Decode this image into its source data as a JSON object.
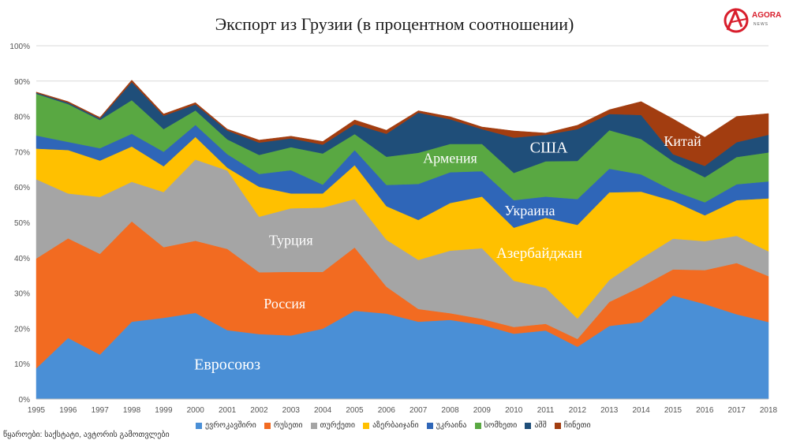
{
  "title": "Экспорт из Грузии (в процентном соотношении)",
  "logo": {
    "text": "AGORA",
    "sub": "NEWS"
  },
  "source": "წყაროები: საქსტატი, ავტორის გამოთვლები",
  "chart_data": {
    "type": "area",
    "stacked": true,
    "x": [
      "1995",
      "1996",
      "1997",
      "1998",
      "1999",
      "2000",
      "2001",
      "2002",
      "2003",
      "2004",
      "2005",
      "2006",
      "2007",
      "2008",
      "2009",
      "2010",
      "2011",
      "2012",
      "2013",
      "2014",
      "2015",
      "2016",
      "2017",
      "2018"
    ],
    "ylim": [
      0,
      100
    ],
    "yticks": [
      "0%",
      "10%",
      "20%",
      "30%",
      "40%",
      "50%",
      "60%",
      "70%",
      "80%",
      "90%",
      "100%"
    ],
    "grid": true,
    "legend_position": "bottom",
    "series": [
      {
        "name": "ევროკავშირი",
        "color": "#4a8fd6",
        "label": "Евросоюз",
        "values": [
          8.7,
          17.3,
          12.6,
          21.9,
          23.0,
          24.4,
          19.5,
          18.4,
          18.0,
          19.9,
          25.0,
          24.2,
          21.9,
          22.4,
          21.0,
          18.5,
          19.4,
          14.8,
          20.7,
          21.8,
          29.3,
          26.9,
          24.0,
          21.8
        ]
      },
      {
        "name": "რუსეთი",
        "color": "#f26b21",
        "label": "Россия",
        "values": [
          31.1,
          28.2,
          28.5,
          28.4,
          20.0,
          20.4,
          23.0,
          17.5,
          18.0,
          16.1,
          17.9,
          7.6,
          3.6,
          1.9,
          1.7,
          1.9,
          1.9,
          2.2,
          6.8,
          10.0,
          7.4,
          9.6,
          14.5,
          13.0
        ]
      },
      {
        "name": "თურქეთი",
        "color": "#a5a5a5",
        "label": "Турция",
        "values": [
          22.4,
          12.7,
          16.1,
          11.2,
          15.6,
          23.0,
          22.2,
          15.7,
          18.0,
          18.2,
          13.7,
          13.3,
          13.9,
          17.7,
          20.0,
          13.1,
          10.2,
          5.8,
          6.2,
          8.0,
          8.7,
          8.2,
          7.7,
          7.0
        ]
      },
      {
        "name": "აზერბაიჯანი",
        "color": "#ffc000",
        "label": "Азербайджан",
        "values": [
          8.7,
          12.3,
          10.3,
          10.0,
          7.3,
          6.4,
          0.8,
          8.5,
          4.2,
          4.0,
          9.6,
          9.5,
          11.3,
          13.5,
          14.6,
          15.0,
          19.8,
          26.5,
          24.8,
          18.9,
          10.7,
          7.3,
          10.1,
          15.0
        ]
      },
      {
        "name": "უკრაინა",
        "color": "#2f66b8",
        "label": "Украина",
        "values": [
          3.7,
          2.3,
          3.5,
          3.6,
          4.1,
          3.4,
          3.8,
          3.6,
          6.6,
          2.5,
          4.3,
          6.0,
          10.2,
          8.7,
          7.2,
          7.8,
          6.0,
          7.3,
          6.7,
          4.9,
          2.9,
          3.7,
          4.5,
          4.8
        ]
      },
      {
        "name": "სომხეთი",
        "color": "#59a842",
        "label": "Армения",
        "values": [
          11.8,
          10.7,
          8.0,
          9.5,
          6.4,
          4.1,
          4.2,
          5.4,
          6.5,
          8.8,
          4.5,
          8.0,
          8.8,
          8.0,
          7.7,
          7.7,
          10.0,
          10.8,
          10.9,
          10.0,
          8.3,
          7.1,
          7.7,
          8.2
        ]
      },
      {
        "name": "აშშ",
        "color": "#1f4e79",
        "label": "США",
        "values": [
          0.3,
          0.4,
          0.4,
          5.1,
          3.8,
          1.7,
          2.5,
          3.5,
          2.5,
          2.5,
          2.8,
          6.5,
          11.4,
          7.0,
          4.2,
          10.0,
          7.5,
          9.0,
          4.6,
          6.8,
          2.0,
          3.2,
          4.2,
          5.0
        ]
      },
      {
        "name": "ჩინეთი",
        "color": "#a23d10",
        "label": "Китай",
        "values": [
          0.2,
          0.3,
          0.3,
          0.6,
          0.5,
          0.5,
          0.4,
          0.7,
          0.6,
          0.9,
          1.2,
          1.0,
          0.5,
          0.7,
          0.6,
          1.9,
          0.5,
          1.1,
          1.2,
          3.8,
          10.0,
          8.1,
          7.3,
          6.0
        ]
      }
    ],
    "labels": [
      {
        "series": 0,
        "text": "Евросоюз"
      },
      {
        "series": 1,
        "text": "Россия"
      },
      {
        "series": 2,
        "text": "Турция"
      },
      {
        "series": 3,
        "text": "Азербайджан"
      },
      {
        "series": 4,
        "text": "Украина"
      },
      {
        "series": 5,
        "text": "Армения"
      },
      {
        "series": 6,
        "text": "США"
      },
      {
        "series": 7,
        "text": "Китай"
      }
    ]
  }
}
